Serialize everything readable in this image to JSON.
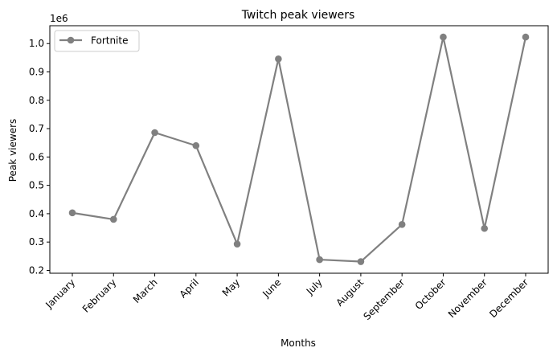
{
  "chart_data": {
    "type": "line",
    "title": "Twitch peak viewers",
    "xlabel": "Months",
    "ylabel": "Peak viewers",
    "y_offset_label": "1e6",
    "categories": [
      "January",
      "February",
      "March",
      "April",
      "May",
      "June",
      "July",
      "August",
      "September",
      "October",
      "November",
      "December"
    ],
    "series": [
      {
        "name": "Fortnite",
        "color": "#808080",
        "marker": "circle",
        "values": [
          403000,
          380000,
          686000,
          640000,
          293000,
          946000,
          238000,
          231000,
          362000,
          1023000,
          348000,
          1023000
        ]
      }
    ],
    "y_ticks": [
      {
        "value": 200000,
        "label": "0.2"
      },
      {
        "value": 300000,
        "label": "0.3"
      },
      {
        "value": 400000,
        "label": "0.4"
      },
      {
        "value": 500000,
        "label": "0.5"
      },
      {
        "value": 600000,
        "label": "0.6"
      },
      {
        "value": 700000,
        "label": "0.7"
      },
      {
        "value": 800000,
        "label": "0.8"
      },
      {
        "value": 900000,
        "label": "0.9"
      },
      {
        "value": 1000000,
        "label": "1.0"
      }
    ],
    "ylim": [
      190000,
      1063000
    ],
    "grid": false,
    "legend_position": "top-left"
  }
}
